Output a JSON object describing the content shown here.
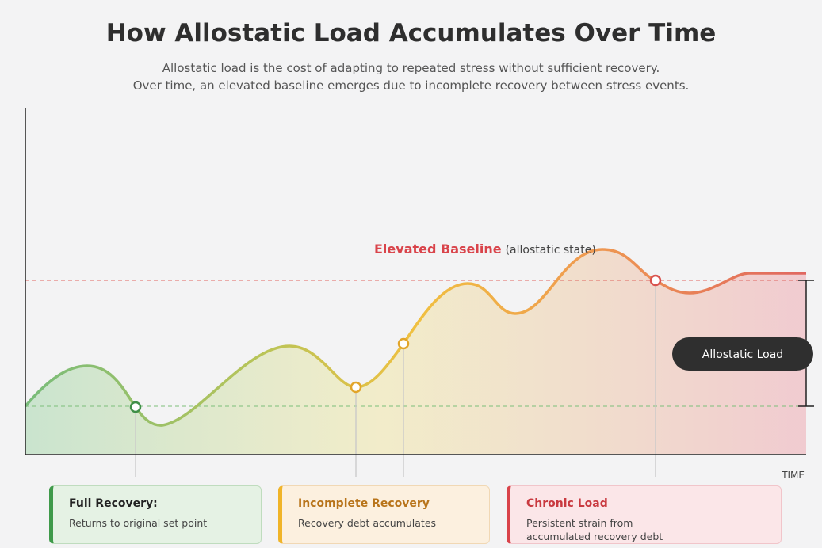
{
  "header": {
    "title": "How Allostatic Load Accumulates Over Time",
    "subtitle": [
      "Allostatic load is the cost of adapting to repeated stress without sufficient recovery.",
      "Over time, an elevated baseline emerges due to incomplete recovery between stress events."
    ]
  },
  "diagram": {
    "baseline_label": "Elevated Baseline",
    "baseline_note": "(allostatic state)",
    "load_label": "Allostatic Load",
    "x_axis_label": "TIME"
  },
  "cards": [
    {
      "title": "Full Recovery:",
      "text": "Returns to original set point"
    },
    {
      "title": "Incomplete Recovery",
      "text": "Recovery debt accumulates"
    },
    {
      "title": "Chronic Load",
      "text": "Persistent strain from accumulated recovery debt"
    }
  ]
}
